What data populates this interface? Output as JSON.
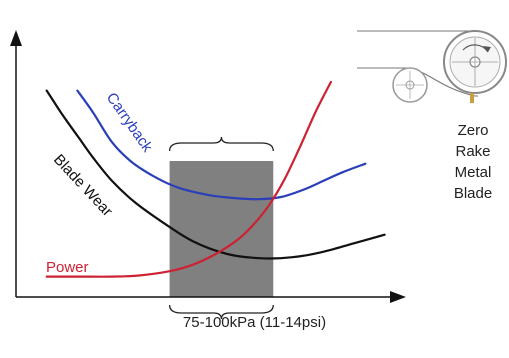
{
  "chart_data": {
    "type": "line",
    "title": "",
    "xlabel": "75-100kPa (11-14psi)",
    "ylabel": "",
    "xlim": [
      0,
      100
    ],
    "ylim": [
      0,
      100
    ],
    "grid": false,
    "highlight_band": {
      "x_start": 40,
      "x_end": 67,
      "color": "#808080"
    },
    "series": [
      {
        "name": "Carryback",
        "color": "#2a3fb8",
        "x": [
          16,
          20,
          25,
          30,
          36,
          42,
          50,
          57,
          63,
          69,
          75,
          80,
          85,
          91
        ],
        "y": [
          96,
          86,
          72,
          63,
          56,
          51,
          47.5,
          46,
          45.5,
          46.5,
          50,
          54,
          58,
          62
        ]
      },
      {
        "name": "Blade Wear",
        "color": "#111111",
        "x": [
          8,
          12,
          16,
          20,
          25,
          31,
          38,
          46,
          55,
          64,
          72,
          80,
          88,
          96
        ],
        "y": [
          96,
          85,
          75,
          65,
          54,
          44,
          35,
          26,
          20,
          18,
          18.5,
          21,
          25,
          29
        ]
      },
      {
        "name": "Power",
        "color": "#cc2233",
        "x": [
          8,
          16,
          25,
          32,
          40,
          46,
          52,
          58,
          62,
          66,
          70,
          74,
          78,
          82
        ],
        "y": [
          9.5,
          9.5,
          9.5,
          10,
          12,
          15,
          20,
          27,
          34,
          43,
          55,
          70,
          86,
          100
        ]
      }
    ]
  },
  "side_label": [
    "Zero",
    "Rake",
    "Metal",
    "Blade"
  ]
}
